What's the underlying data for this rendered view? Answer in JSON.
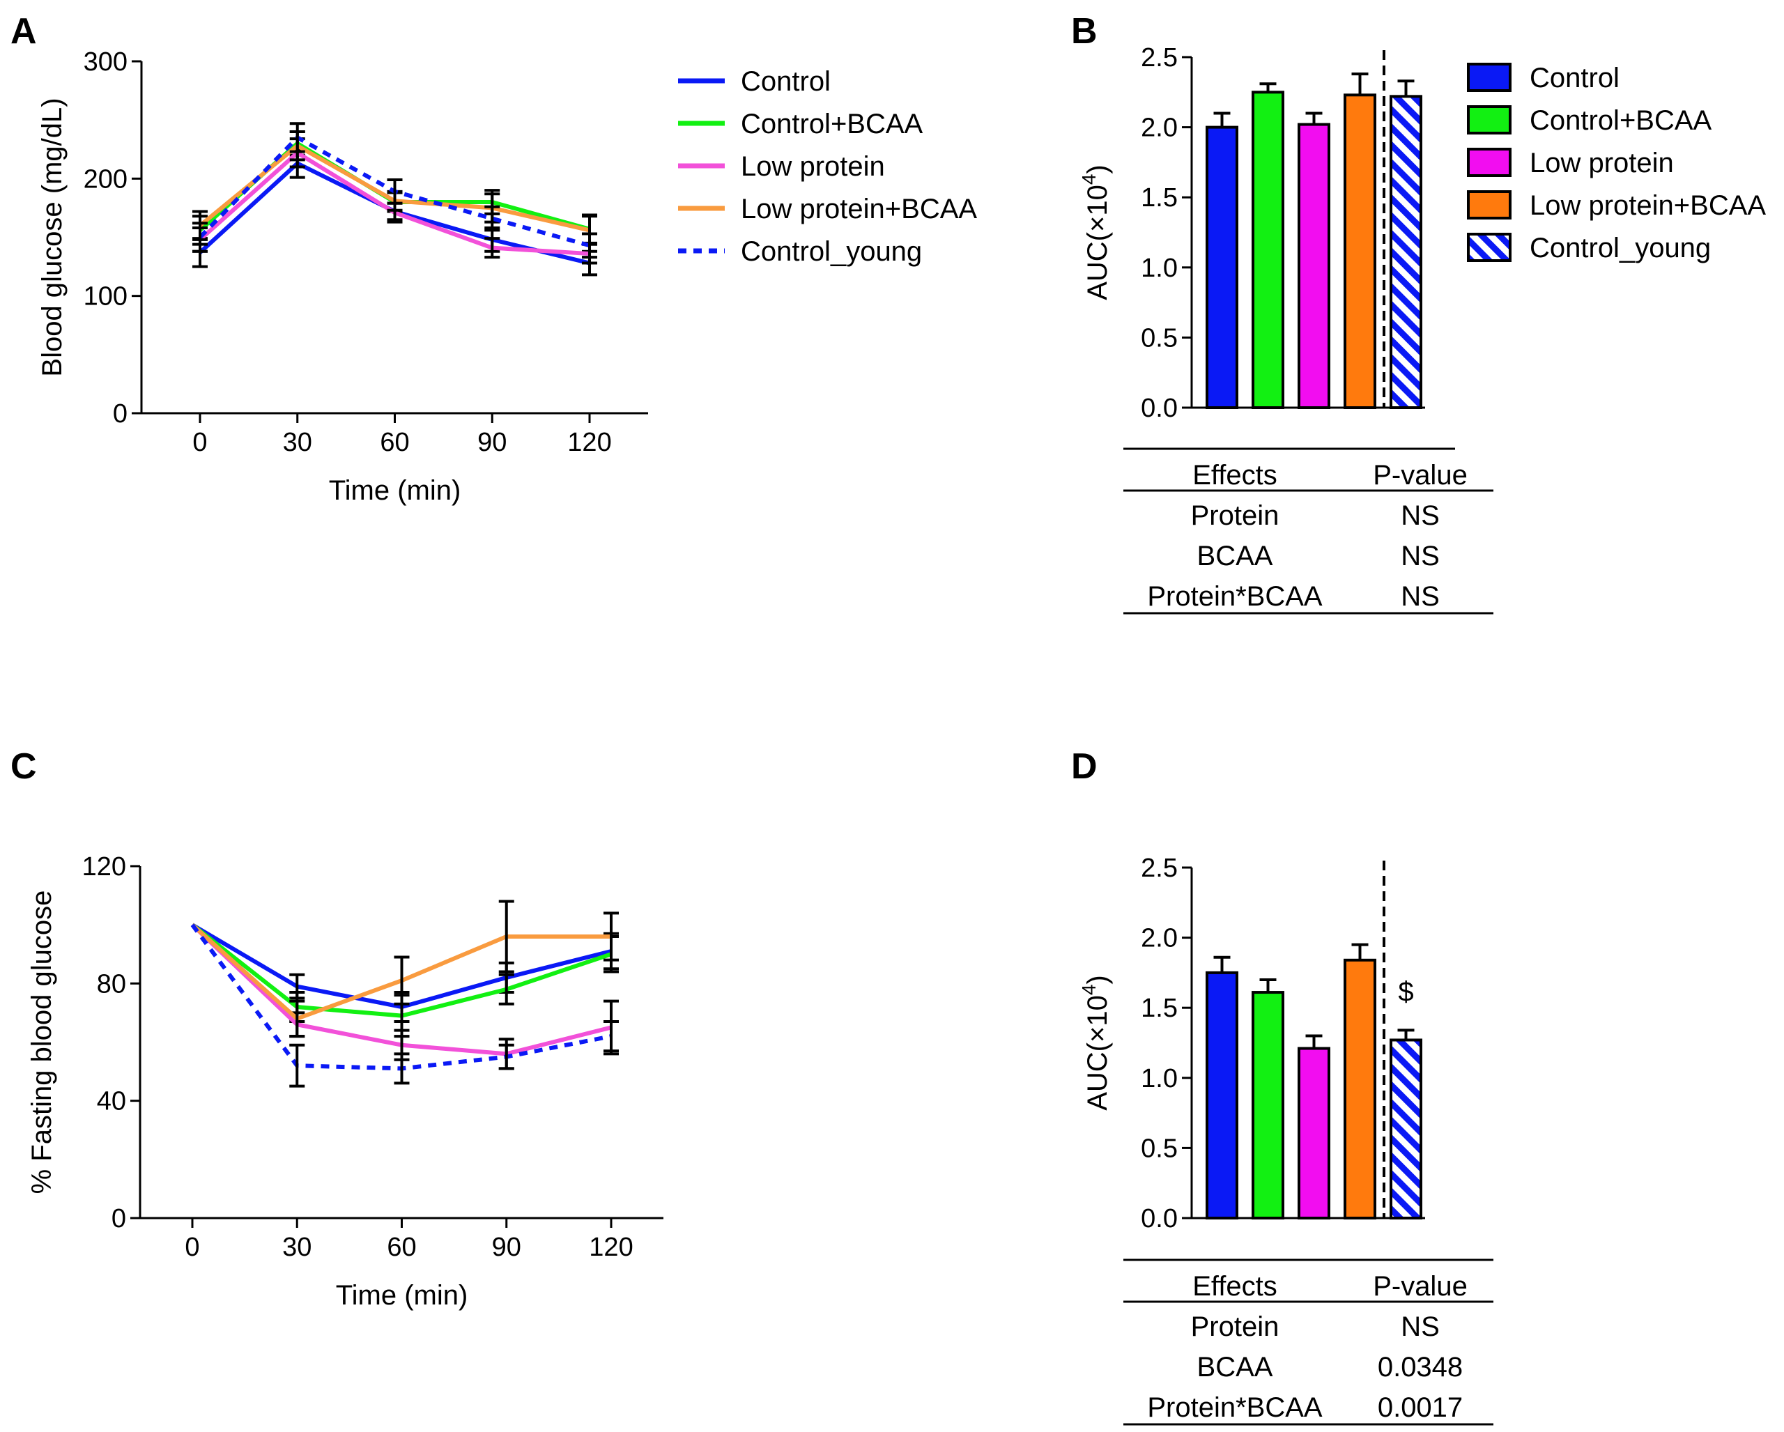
{
  "colors": {
    "control": "#0a19f5",
    "control_bcaa": "#12f012",
    "low_protein": "#f251d9",
    "low_protein_bcaa": "#f99b3f",
    "control_young": "#0a19f5",
    "bar_control": "#0a19f5",
    "bar_control_bcaa": "#12f012",
    "bar_low_protein": "#f20df0",
    "bar_low_protein_bcaa": "#ff7a0d"
  },
  "chart_data": [
    {
      "panel": "A",
      "type": "line",
      "x": [
        0,
        30,
        60,
        90,
        120
      ],
      "xlabel": "Time (min)",
      "ylabel": "Blood glucose (mg/dL)",
      "xticks": [
        "0",
        "30",
        "60",
        "90",
        "120"
      ],
      "yticks": [
        "0",
        "100",
        "200",
        "300"
      ],
      "ylim": [
        0,
        300
      ],
      "series": [
        {
          "name": "Control",
          "key": "control",
          "dash": false,
          "values": [
            137,
            213,
            172,
            148,
            128
          ],
          "err": [
            12,
            12,
            7,
            10,
            10
          ]
        },
        {
          "name": "Control+BCAA",
          "key": "control_bcaa",
          "dash": false,
          "values": [
            156,
            230,
            180,
            180,
            157
          ],
          "err": [
            12,
            10,
            8,
            10,
            12
          ]
        },
        {
          "name": "Low protein",
          "key": "low_protein",
          "dash": false,
          "values": [
            148,
            222,
            171,
            141,
            136
          ],
          "err": [
            10,
            12,
            8,
            8,
            8
          ]
        },
        {
          "name": "Low protein+BCAA",
          "key": "low_protein_bcaa",
          "dash": false,
          "values": [
            160,
            228,
            181,
            175,
            156
          ],
          "err": [
            12,
            12,
            8,
            12,
            12
          ]
        },
        {
          "name": "Control_young",
          "key": "control_young",
          "dash": true,
          "values": [
            150,
            235,
            189,
            166,
            143
          ],
          "err": [
            12,
            12,
            10,
            10,
            10
          ]
        }
      ]
    },
    {
      "panel": "B",
      "type": "bar",
      "ylabel_main": "AUC(",
      "ylabel_sym": "×",
      "ylabel_tail": "10",
      "ylabel_sup": "4",
      "ylabel_close": ")",
      "categories": [
        "Control",
        "Control+BCAA",
        "Low protein",
        "Low protein+BCAA",
        "Control_young"
      ],
      "values": [
        2.0,
        2.25,
        2.02,
        2.23,
        2.22
      ],
      "err": [
        0.1,
        0.06,
        0.08,
        0.15,
        0.11
      ],
      "yticks": [
        "0.0",
        "0.5",
        "1.0",
        "1.5",
        "2.0",
        "2.5"
      ],
      "ylim": [
        0,
        2.5
      ],
      "annotation": "",
      "table": {
        "headers": [
          "Effects",
          "P-value"
        ],
        "rows": [
          [
            "Protein",
            "NS"
          ],
          [
            "BCAA",
            "NS"
          ],
          [
            "Protein*BCAA",
            "NS"
          ]
        ]
      }
    },
    {
      "panel": "C",
      "type": "line",
      "x": [
        0,
        30,
        60,
        90,
        120
      ],
      "xlabel": "Time (min)",
      "ylabel": "% Fasting blood glucose",
      "xticks": [
        "0",
        "30",
        "60",
        "90",
        "120"
      ],
      "yticks": [
        "0",
        "40",
        "80",
        "120"
      ],
      "ylim": [
        0,
        120
      ],
      "series": [
        {
          "name": "Control",
          "key": "control",
          "dash": false,
          "values": [
            100,
            79,
            72,
            82,
            91
          ],
          "err": [
            0,
            4,
            5,
            5,
            6
          ]
        },
        {
          "name": "Control+BCAA",
          "key": "control_bcaa",
          "dash": false,
          "values": [
            100,
            72,
            69,
            78,
            90
          ],
          "err": [
            0,
            5,
            7,
            5,
            6
          ]
        },
        {
          "name": "Low protein",
          "key": "low_protein",
          "dash": false,
          "values": [
            100,
            66,
            59,
            56,
            65
          ],
          "err": [
            0,
            4,
            5,
            5,
            9
          ]
        },
        {
          "name": "Low protein+BCAA",
          "key": "low_protein_bcaa",
          "dash": false,
          "values": [
            100,
            68,
            81,
            96,
            96
          ],
          "err": [
            0,
            6,
            8,
            12,
            8
          ]
        },
        {
          "name": "Control_young",
          "key": "control_young",
          "dash": true,
          "values": [
            100,
            52,
            51,
            55,
            62
          ],
          "err": [
            0,
            7,
            5,
            4,
            5
          ]
        }
      ]
    },
    {
      "panel": "D",
      "type": "bar",
      "ylabel_main": "AUC(",
      "ylabel_sym": "×",
      "ylabel_tail": "10",
      "ylabel_sup": "4",
      "ylabel_close": ")",
      "categories": [
        "Control",
        "Control+BCAA",
        "Low protein",
        "Low protein+BCAA",
        "Control_young"
      ],
      "values": [
        1.75,
        1.61,
        1.21,
        1.84,
        1.27
      ],
      "err": [
        0.11,
        0.09,
        0.09,
        0.11,
        0.07
      ],
      "yticks": [
        "0.0",
        "0.5",
        "1.0",
        "1.5",
        "2.0",
        "2.5"
      ],
      "ylim": [
        0,
        2.5
      ],
      "annotation": "$",
      "table": {
        "headers": [
          "Effects",
          "P-value"
        ],
        "rows": [
          [
            "Protein",
            "NS"
          ],
          [
            "BCAA",
            "0.0348"
          ],
          [
            "Protein*BCAA",
            "0.0017"
          ]
        ]
      }
    }
  ]
}
